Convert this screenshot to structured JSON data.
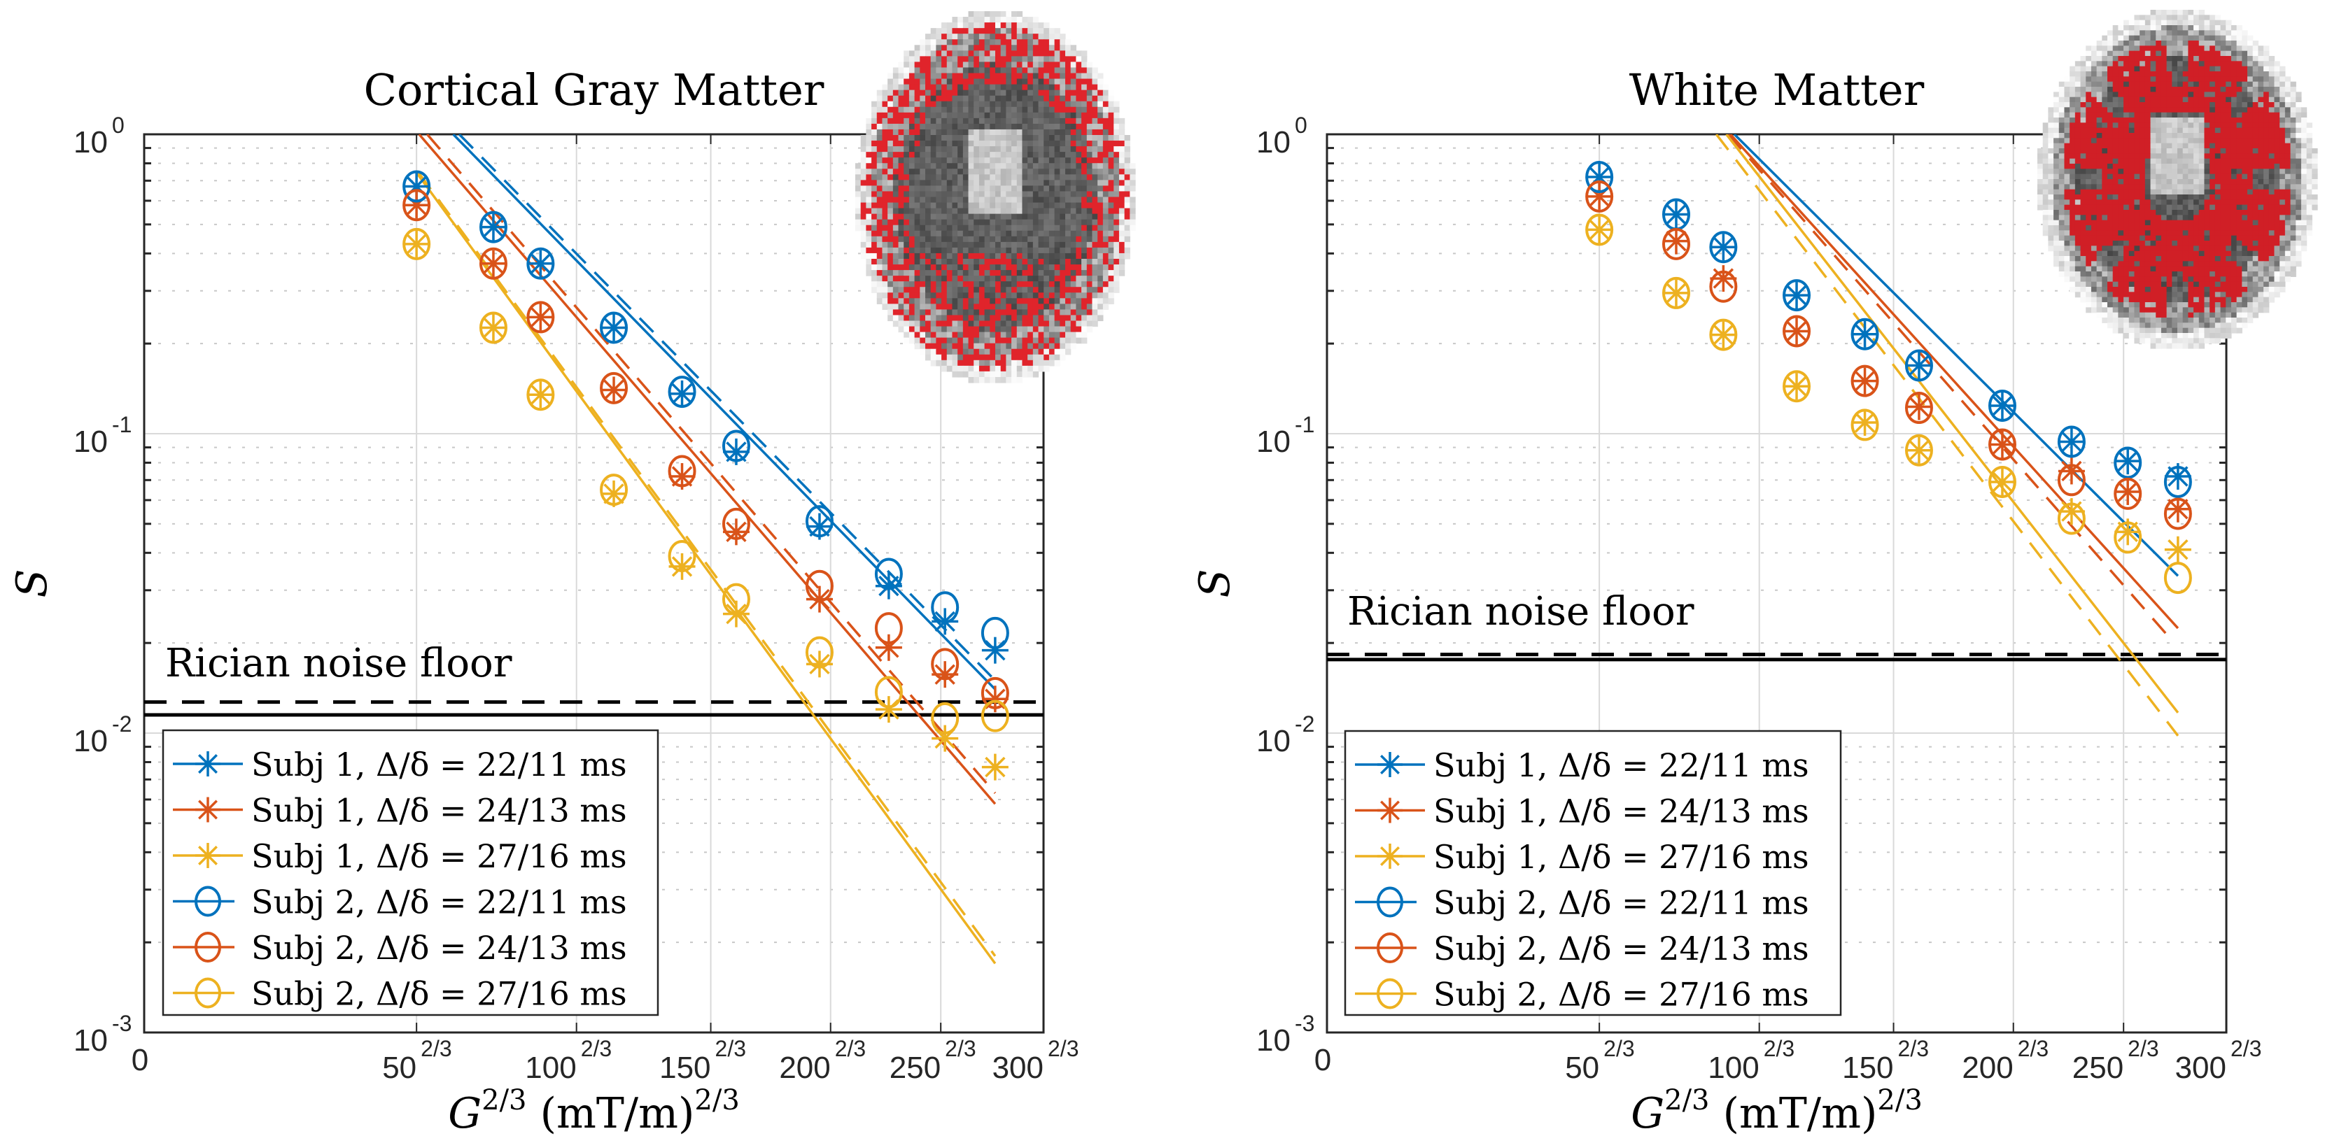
{
  "colors": {
    "delta_22_11": "#0072BD",
    "delta_24_13": "#D95319",
    "delta_27_16": "#EDB120",
    "noise_floor": "#000000",
    "grid": "#d9d9d9",
    "axis": "#262626"
  },
  "chart_data": [
    {
      "type": "scatter",
      "title": "Cortical Gray Matter",
      "xlabel": "G^{2/3} (mT/m)^{2/3}",
      "ylabel": "S",
      "xscale": "linear (G^{2/3})",
      "yscale": "log",
      "xlim": [
        0,
        44.81
      ],
      "ylim": [
        0.001,
        1
      ],
      "grid": true,
      "minor_grid": "dotted",
      "x_ticks": [
        {
          "value": 0,
          "label": "0",
          "sup": ""
        },
        {
          "value": 13.57,
          "label": "50",
          "sup": "2/3"
        },
        {
          "value": 21.54,
          "label": "100",
          "sup": "2/3"
        },
        {
          "value": 28.23,
          "label": "150",
          "sup": "2/3"
        },
        {
          "value": 34.2,
          "label": "200",
          "sup": "2/3"
        },
        {
          "value": 39.69,
          "label": "250",
          "sup": "2/3"
        },
        {
          "value": 44.81,
          "label": "300",
          "sup": "2/3"
        }
      ],
      "y_ticks": [
        {
          "value": 1,
          "label": "10",
          "sup": "0"
        },
        {
          "value": 0.1,
          "label": "10",
          "sup": "-1"
        },
        {
          "value": 0.01,
          "label": "10",
          "sup": "-2"
        },
        {
          "value": 0.001,
          "label": "10",
          "sup": "-3"
        }
      ],
      "x": [
        13.57,
        17.4,
        19.75,
        23.4,
        26.8,
        29.5,
        33.65,
        37.1,
        39.9,
        42.4
      ],
      "series": [
        {
          "name": "Subj 1, Δ/δ = 22/11 ms",
          "subject": 1,
          "marker": "asterisk",
          "color_key": "delta_22_11",
          "values": [
            0.67,
            0.49,
            0.37,
            0.226,
            0.136,
            0.087,
            0.049,
            0.031,
            0.0236,
            0.0189
          ]
        },
        {
          "name": "Subj 1, Δ/δ = 24/13 ms",
          "subject": 1,
          "marker": "asterisk",
          "color_key": "delta_24_13",
          "values": [
            0.58,
            0.37,
            0.245,
            0.14,
            0.072,
            0.047,
            0.028,
            0.0193,
            0.0157,
            0.013
          ]
        },
        {
          "name": "Subj 1, Δ/δ = 27/16 ms",
          "subject": 1,
          "marker": "asterisk",
          "color_key": "delta_27_16",
          "values": [
            0.43,
            0.226,
            0.135,
            0.063,
            0.036,
            0.025,
            0.017,
            0.012,
            0.0096,
            0.0077
          ]
        },
        {
          "name": "Subj 2, Δ/δ = 22/11 ms",
          "subject": 2,
          "marker": "circle",
          "color_key": "delta_22_11",
          "values": [
            0.67,
            0.49,
            0.37,
            0.226,
            0.138,
            0.091,
            0.051,
            0.034,
            0.0263,
            0.0216
          ]
        },
        {
          "name": "Subj 2, Δ/δ = 24/13 ms",
          "subject": 2,
          "marker": "circle",
          "color_key": "delta_24_13",
          "values": [
            0.58,
            0.37,
            0.245,
            0.142,
            0.075,
            0.05,
            0.031,
            0.0224,
            0.017,
            0.0136
          ]
        },
        {
          "name": "Subj 2, Δ/δ = 27/16 ms",
          "subject": 2,
          "marker": "circle",
          "color_key": "delta_27_16",
          "values": [
            0.43,
            0.226,
            0.135,
            0.065,
            0.039,
            0.028,
            0.0186,
            0.0137,
            0.0112,
            0.0114
          ]
        }
      ],
      "fit_lines": [
        {
          "subject": 1,
          "style": "solid",
          "color_key": "delta_22_11",
          "x": [
            15.4,
            42.4
          ],
          "y": [
            1.0,
            0.014
          ]
        },
        {
          "subject": 2,
          "style": "dashed",
          "color_key": "delta_22_11",
          "x": [
            15.7,
            42.4
          ],
          "y": [
            1.0,
            0.015
          ]
        },
        {
          "subject": 1,
          "style": "solid",
          "color_key": "delta_24_13",
          "x": [
            13.7,
            42.4
          ],
          "y": [
            1.0,
            0.0058
          ]
        },
        {
          "subject": 2,
          "style": "dashed",
          "color_key": "delta_24_13",
          "x": [
            14.1,
            42.4
          ],
          "y": [
            1.0,
            0.0063
          ]
        },
        {
          "subject": 1,
          "style": "solid",
          "color_key": "delta_27_16",
          "x": [
            13.6,
            42.4
          ],
          "y": [
            0.74,
            0.0017
          ]
        },
        {
          "subject": 2,
          "style": "dashed",
          "color_key": "delta_27_16",
          "x": [
            13.7,
            42.4
          ],
          "y": [
            0.74,
            0.0018
          ]
        }
      ],
      "noise_floor": {
        "label": "Rician noise floor",
        "solid": 0.0115,
        "dashed": 0.0127
      },
      "legend_placement": "bottom-left",
      "inset_image": {
        "description": "axial brain MRI slice with cortical gray matter mask overlay",
        "mask_color": "#e0242b",
        "placement": "top-right"
      }
    },
    {
      "type": "scatter",
      "title": "White Matter",
      "xlabel": "G^{2/3} (mT/m)^{2/3}",
      "ylabel": "S",
      "xscale": "linear (G^{2/3})",
      "yscale": "log",
      "xlim": [
        0,
        44.81
      ],
      "ylim": [
        0.001,
        1
      ],
      "grid": true,
      "minor_grid": "dotted",
      "x_ticks": [
        {
          "value": 0,
          "label": "0",
          "sup": ""
        },
        {
          "value": 13.57,
          "label": "50",
          "sup": "2/3"
        },
        {
          "value": 21.54,
          "label": "100",
          "sup": "2/3"
        },
        {
          "value": 28.23,
          "label": "150",
          "sup": "2/3"
        },
        {
          "value": 34.2,
          "label": "200",
          "sup": "2/3"
        },
        {
          "value": 39.69,
          "label": "250",
          "sup": "2/3"
        },
        {
          "value": 44.81,
          "label": "300",
          "sup": "2/3"
        }
      ],
      "y_ticks": [
        {
          "value": 1,
          "label": "10",
          "sup": "0"
        },
        {
          "value": 0.1,
          "label": "10",
          "sup": "-1"
        },
        {
          "value": 0.01,
          "label": "10",
          "sup": "-2"
        },
        {
          "value": 0.001,
          "label": "10",
          "sup": "-3"
        }
      ],
      "x": [
        13.57,
        17.4,
        19.75,
        23.4,
        26.8,
        29.5,
        33.65,
        37.1,
        39.9,
        42.4
      ],
      "series": [
        {
          "name": "Subj 1, Δ/δ = 22/11 ms",
          "subject": 1,
          "marker": "asterisk",
          "color_key": "delta_22_11",
          "values": [
            0.72,
            0.54,
            0.42,
            0.29,
            0.215,
            0.169,
            0.124,
            0.094,
            0.081,
            0.072
          ]
        },
        {
          "name": "Subj 1, Δ/δ = 24/13 ms",
          "subject": 1,
          "marker": "asterisk",
          "color_key": "delta_24_13",
          "values": [
            0.62,
            0.44,
            0.33,
            0.22,
            0.15,
            0.123,
            0.092,
            0.075,
            0.064,
            0.056
          ]
        },
        {
          "name": "Subj 1, Δ/δ = 27/16 ms",
          "subject": 1,
          "marker": "asterisk",
          "color_key": "delta_27_16",
          "values": [
            0.48,
            0.295,
            0.214,
            0.144,
            0.109,
            0.088,
            0.069,
            0.055,
            0.047,
            0.041
          ]
        },
        {
          "name": "Subj 2, Δ/δ = 22/11 ms",
          "subject": 2,
          "marker": "circle",
          "color_key": "delta_22_11",
          "values": [
            0.72,
            0.54,
            0.42,
            0.29,
            0.215,
            0.169,
            0.124,
            0.094,
            0.08,
            0.069
          ]
        },
        {
          "name": "Subj 2, Δ/δ = 24/13 ms",
          "subject": 2,
          "marker": "circle",
          "color_key": "delta_24_13",
          "values": [
            0.62,
            0.43,
            0.31,
            0.22,
            0.15,
            0.122,
            0.092,
            0.07,
            0.063,
            0.054
          ]
        },
        {
          "name": "Subj 2, Δ/δ = 27/16 ms",
          "subject": 2,
          "marker": "circle",
          "color_key": "delta_27_16",
          "values": [
            0.48,
            0.295,
            0.214,
            0.144,
            0.107,
            0.088,
            0.069,
            0.052,
            0.045,
            0.033
          ]
        }
      ],
      "fit_lines": [
        {
          "subject": 1,
          "style": "solid",
          "color_key": "delta_22_11",
          "x": [
            20.3,
            42.4
          ],
          "y": [
            1.0,
            0.0335
          ]
        },
        {
          "subject": 1,
          "style": "solid",
          "color_key": "delta_24_13",
          "x": [
            20.1,
            42.4
          ],
          "y": [
            1.0,
            0.0224
          ]
        },
        {
          "subject": 2,
          "style": "dashed",
          "color_key": "delta_24_13",
          "x": [
            20.0,
            41.8
          ],
          "y": [
            1.0,
            0.0215
          ]
        },
        {
          "subject": 1,
          "style": "solid",
          "color_key": "delta_27_16",
          "x": [
            19.9,
            42.4
          ],
          "y": [
            1.0,
            0.0117
          ]
        },
        {
          "subject": 2,
          "style": "dashed",
          "color_key": "delta_27_16",
          "x": [
            19.4,
            42.4
          ],
          "y": [
            1.0,
            0.0098
          ]
        }
      ],
      "noise_floor": {
        "label": "Rician noise floor",
        "solid": 0.0176,
        "dashed": 0.0183
      },
      "legend_placement": "bottom-left",
      "inset_image": {
        "description": "axial brain MRI slice with white matter mask overlay",
        "mask_color": "#d01f26",
        "placement": "top-right"
      }
    }
  ]
}
